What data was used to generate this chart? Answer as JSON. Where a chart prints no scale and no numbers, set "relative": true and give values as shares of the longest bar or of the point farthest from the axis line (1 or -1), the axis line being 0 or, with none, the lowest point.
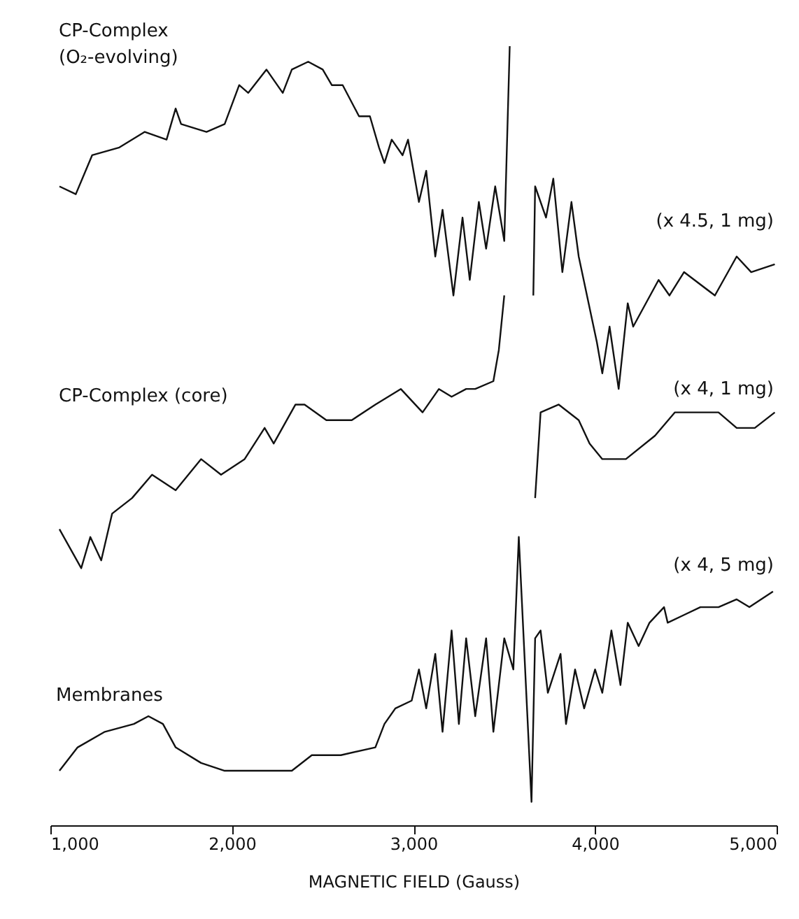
{
  "chart_data": {
    "type": "line",
    "relative": true,
    "xlabel": "MAGNETIC FIELD      (Gauss)",
    "xlim": [
      1000,
      5000
    ],
    "xticks": [
      {
        "value": 1000,
        "label": "1,000"
      },
      {
        "value": 2000,
        "label": "2,000"
      },
      {
        "value": 3000,
        "label": "3,000"
      },
      {
        "value": 4000,
        "label": "4,000"
      },
      {
        "value": 5000,
        "label": "5,000"
      }
    ],
    "grid": false,
    "marker": "none",
    "line_style": "solid",
    "annotations": [
      "(x 4.5, 1 mg)",
      "(x 4,  1 mg)",
      "(x 4,  5 mg)"
    ],
    "series": [
      {
        "name": "CP-Complex (O₂-evolving)",
        "color": "#111111",
        "x": [
          1050,
          1140,
          1230,
          1380,
          1520,
          1640,
          1690,
          1720,
          1860,
          1960,
          2040,
          2090,
          2190,
          2280,
          2330,
          2420,
          2500,
          2550,
          2610,
          2700,
          2760,
          2810,
          2840,
          2880,
          2940,
          2970,
          3030,
          3070,
          3120,
          3160,
          3220,
          3270,
          3310,
          3360,
          3400,
          3450,
          3500,
          3530,
          3600,
          3660,
          3670,
          3730,
          3770,
          3820,
          3870,
          3910,
          4010,
          4040,
          4080,
          4130,
          4180,
          4210,
          4350,
          4410,
          4490,
          4660,
          4780,
          4860,
          4990
        ],
        "values": [
          0.82,
          0.81,
          0.86,
          0.87,
          0.89,
          0.88,
          0.92,
          0.9,
          0.89,
          0.9,
          0.95,
          0.94,
          0.97,
          0.94,
          0.97,
          0.98,
          0.97,
          0.95,
          0.95,
          0.91,
          0.91,
          0.87,
          0.85,
          0.88,
          0.86,
          0.88,
          0.8,
          0.84,
          0.73,
          0.79,
          0.68,
          0.78,
          0.7,
          0.8,
          0.74,
          0.82,
          0.75,
          1.0,
          null,
          0.68,
          0.82,
          0.78,
          0.83,
          0.71,
          0.8,
          0.73,
          0.62,
          0.58,
          0.64,
          0.56,
          0.67,
          0.64,
          0.7,
          0.68,
          0.71,
          0.68,
          0.73,
          0.71,
          0.72
        ]
      },
      {
        "name": "CP-Complex (core)",
        "color": "#111111",
        "x": [
          1050,
          1170,
          1220,
          1280,
          1340,
          1450,
          1560,
          1690,
          1830,
          1940,
          2070,
          2180,
          2230,
          2350,
          2400,
          2520,
          2660,
          2790,
          2930,
          3050,
          3140,
          3210,
          3290,
          3340,
          3440,
          3470,
          3500,
          3600,
          3670,
          3700,
          3800,
          3910,
          3970,
          4040,
          4170,
          4330,
          4440,
          4550,
          4680,
          4780,
          4880,
          4990
        ],
        "values": [
          0.38,
          0.33,
          0.37,
          0.34,
          0.4,
          0.42,
          0.45,
          0.43,
          0.47,
          0.45,
          0.47,
          0.51,
          0.49,
          0.54,
          0.54,
          0.52,
          0.52,
          0.54,
          0.56,
          0.53,
          0.56,
          0.55,
          0.56,
          0.56,
          0.57,
          0.61,
          0.68,
          null,
          0.42,
          0.53,
          0.54,
          0.52,
          0.49,
          0.47,
          0.47,
          0.5,
          0.53,
          0.53,
          0.53,
          0.51,
          0.51,
          0.53
        ]
      },
      {
        "name": "Membranes",
        "color": "#111111",
        "x": [
          1050,
          1150,
          1300,
          1460,
          1540,
          1620,
          1690,
          1830,
          1960,
          2130,
          2330,
          2440,
          2600,
          2790,
          2840,
          2900,
          2990,
          3030,
          3070,
          3120,
          3160,
          3210,
          3250,
          3290,
          3340,
          3400,
          3440,
          3500,
          3550,
          3580,
          3650,
          3670,
          3700,
          3740,
          3810,
          3840,
          3890,
          3940,
          4000,
          4040,
          4090,
          4140,
          4180,
          4240,
          4300,
          4380,
          4400,
          4490,
          4580,
          4680,
          4780,
          4850,
          4980
        ],
        "values": [
          0.07,
          0.1,
          0.12,
          0.13,
          0.14,
          0.13,
          0.1,
          0.08,
          0.07,
          0.07,
          0.07,
          0.09,
          0.09,
          0.1,
          0.13,
          0.15,
          0.16,
          0.2,
          0.15,
          0.22,
          0.12,
          0.25,
          0.13,
          0.24,
          0.14,
          0.24,
          0.12,
          0.24,
          0.2,
          0.37,
          0.03,
          0.24,
          0.25,
          0.17,
          0.22,
          0.13,
          0.2,
          0.15,
          0.2,
          0.17,
          0.25,
          0.18,
          0.26,
          0.23,
          0.26,
          0.28,
          0.26,
          0.27,
          0.28,
          0.28,
          0.29,
          0.28,
          0.3
        ]
      }
    ]
  }
}
